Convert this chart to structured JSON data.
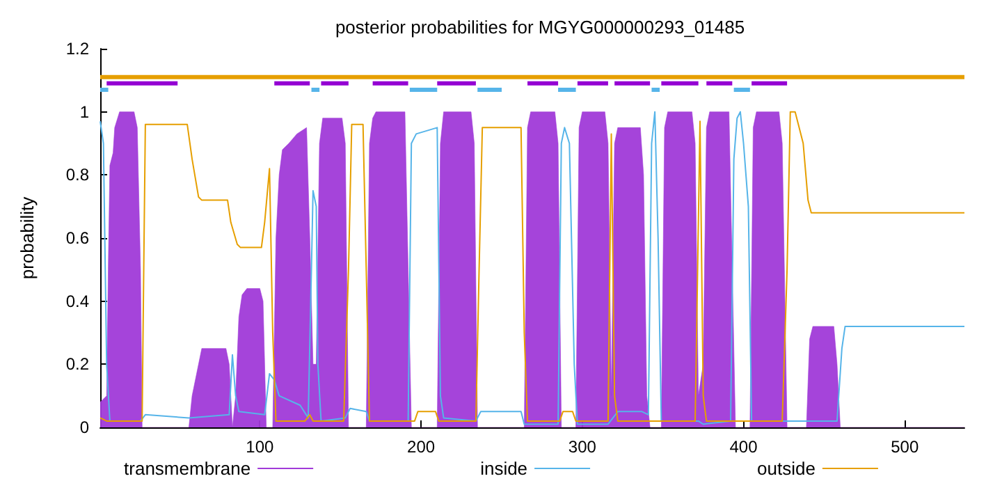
{
  "chart_data": {
    "type": "line",
    "title": "posterior probabilities for MGYG000000293_01485",
    "ylabel": "probability",
    "xlim": [
      1,
      537
    ],
    "xticks": [
      100,
      200,
      300,
      400,
      500
    ],
    "ylim": [
      0,
      1.2
    ],
    "yticks": [
      0,
      0.2,
      0.4,
      0.6,
      0.8,
      1,
      1.2
    ],
    "grid": false,
    "legend": "bottom",
    "marker": "none",
    "line_style": "solid",
    "series": [
      {
        "name": "transmembrane",
        "type": "area",
        "color": "#a03ad8",
        "x": [
          1,
          5,
          6,
          7,
          9,
          10,
          13,
          22,
          24,
          26,
          27,
          56,
          58,
          62,
          64,
          79,
          81,
          83,
          85,
          87,
          89,
          92,
          100,
          102,
          104,
          108,
          110,
          112,
          114,
          118,
          123,
          129,
          131,
          133,
          135,
          137,
          139,
          151,
          153,
          155,
          166,
          168,
          170,
          172,
          190,
          192,
          194,
          210,
          212,
          214,
          231,
          233,
          235,
          264,
          266,
          268,
          283,
          285,
          287,
          296,
          298,
          300,
          314,
          316,
          318,
          320,
          322,
          336,
          338,
          340,
          342,
          349,
          351,
          353,
          368,
          370,
          372,
          375,
          377,
          379,
          391,
          393,
          395,
          404,
          406,
          408,
          422,
          424,
          427,
          439,
          441,
          443,
          456,
          458,
          460,
          537
        ],
        "values": [
          0.08,
          0.1,
          0.5,
          0.83,
          0.87,
          0.95,
          1,
          1,
          0.95,
          0.5,
          0,
          0,
          0.1,
          0.2,
          0.25,
          0.25,
          0.2,
          0,
          0.1,
          0.35,
          0.42,
          0.44,
          0.44,
          0.4,
          0,
          0,
          0.6,
          0.8,
          0.88,
          0.9,
          0.93,
          0.95,
          0.6,
          0.2,
          0.2,
          0.9,
          0.98,
          0.98,
          0.9,
          0,
          0,
          0.9,
          0.98,
          1,
          1,
          0.5,
          0,
          0,
          0.9,
          1,
          1,
          0.9,
          0,
          0,
          0.95,
          1,
          1,
          0.9,
          0,
          0,
          0.95,
          1,
          1,
          0.9,
          0.1,
          0.9,
          0.95,
          0.95,
          0.8,
          0.1,
          0,
          0,
          0.95,
          1,
          1,
          0.9,
          0.1,
          0.2,
          0.95,
          1,
          1,
          0.5,
          0,
          0,
          0.95,
          1,
          1,
          0.9,
          0,
          0,
          0.28,
          0.32,
          0.32,
          0.2,
          0,
          0
        ]
      },
      {
        "name": "inside",
        "color": "#56b4e9",
        "x": [
          1,
          3,
          5,
          7,
          26,
          29,
          56,
          81,
          83,
          85,
          87,
          103,
          106,
          109,
          112,
          125,
          130,
          132,
          133,
          135,
          136,
          138,
          153,
          156,
          166,
          168,
          192,
          194,
          197,
          210,
          212,
          214,
          234,
          237,
          262,
          264,
          285,
          287,
          289,
          292,
          295,
          297,
          316,
          322,
          337,
          341,
          343,
          345,
          347,
          349,
          372,
          375,
          392,
          394,
          396,
          398,
          400,
          403,
          405,
          458,
          461,
          463,
          537
        ],
        "values": [
          0.97,
          0.9,
          0.2,
          0.02,
          0.02,
          0.04,
          0.03,
          0.04,
          0.23,
          0.1,
          0.05,
          0.04,
          0.17,
          0.15,
          0.1,
          0.07,
          0.03,
          0.5,
          0.75,
          0.7,
          0.2,
          0.02,
          0.03,
          0.06,
          0.05,
          0.02,
          0.02,
          0.9,
          0.93,
          0.95,
          0.1,
          0.03,
          0.02,
          0.05,
          0.05,
          0.01,
          0.01,
          0.9,
          0.95,
          0.9,
          0.2,
          0.01,
          0.01,
          0.05,
          0.05,
          0.04,
          0.9,
          1,
          0.6,
          0.02,
          0.02,
          0.01,
          0.02,
          0.85,
          0.98,
          1,
          0.9,
          0.7,
          0.02,
          0.02,
          0.25,
          0.32,
          0.32
        ]
      },
      {
        "name": "outside",
        "color": "#e69f00",
        "x": [
          1,
          5,
          27,
          28,
          29,
          55,
          58,
          62,
          64,
          80,
          82,
          86,
          88,
          101,
          103,
          106,
          108,
          110,
          128,
          131,
          133,
          152,
          155,
          157,
          164,
          166,
          168,
          196,
          198,
          209,
          211,
          234,
          236,
          238,
          262,
          264,
          266,
          286,
          288,
          294,
          296,
          316,
          318,
          320,
          322,
          370,
          373,
          375,
          377,
          424,
          427,
          429,
          432,
          434,
          437,
          440,
          442,
          537
        ],
        "values": [
          0.03,
          0.02,
          0.02,
          0.5,
          0.96,
          0.96,
          0.85,
          0.73,
          0.72,
          0.72,
          0.65,
          0.58,
          0.57,
          0.57,
          0.65,
          0.82,
          0.3,
          0.02,
          0.02,
          0.04,
          0.02,
          0.02,
          0.5,
          0.96,
          0.96,
          0.5,
          0.02,
          0.02,
          0.05,
          0.05,
          0.02,
          0.02,
          0.5,
          0.95,
          0.95,
          0.3,
          0.02,
          0.02,
          0.05,
          0.05,
          0.02,
          0.02,
          0.93,
          0.1,
          0.02,
          0.02,
          0.97,
          0.1,
          0.02,
          0.02,
          0.5,
          1,
          1,
          0.96,
          0.9,
          0.72,
          0.68,
          0.68
        ]
      },
      {
        "color": "#e69f00",
        "x": [
          1,
          537
        ],
        "values": [
          1.11,
          1.11
        ]
      },
      {
        "color": "#56b4e9",
        "x": [
          1,
          6,
          7,
          132,
          137,
          138,
          193,
          210,
          211,
          235,
          250,
          251,
          285,
          296,
          297,
          343,
          348,
          349,
          394,
          404
        ],
        "values": [
          1.07,
          1.07,
          null,
          1.07,
          1.07,
          null,
          1.07,
          1.07,
          null,
          1.07,
          1.07,
          null,
          1.07,
          1.07,
          null,
          1.07,
          1.07,
          null,
          1.07,
          1.07
        ]
      },
      {
        "color": "#9400d3",
        "x": [
          5,
          49,
          50,
          109,
          131,
          132,
          138,
          155,
          156,
          170,
          192,
          193,
          210,
          234,
          235,
          266,
          285,
          286,
          297,
          316,
          317,
          320,
          342,
          343,
          349,
          372,
          373,
          377,
          393,
          394,
          405,
          427
        ],
        "values": [
          1.09,
          1.09,
          null,
          1.09,
          1.09,
          null,
          1.09,
          1.09,
          null,
          1.09,
          1.09,
          null,
          1.09,
          1.09,
          null,
          1.09,
          1.09,
          null,
          1.09,
          1.09,
          null,
          1.09,
          1.09,
          null,
          1.09,
          1.09,
          null,
          1.09,
          1.09,
          null,
          1.09,
          1.09
        ]
      }
    ]
  }
}
